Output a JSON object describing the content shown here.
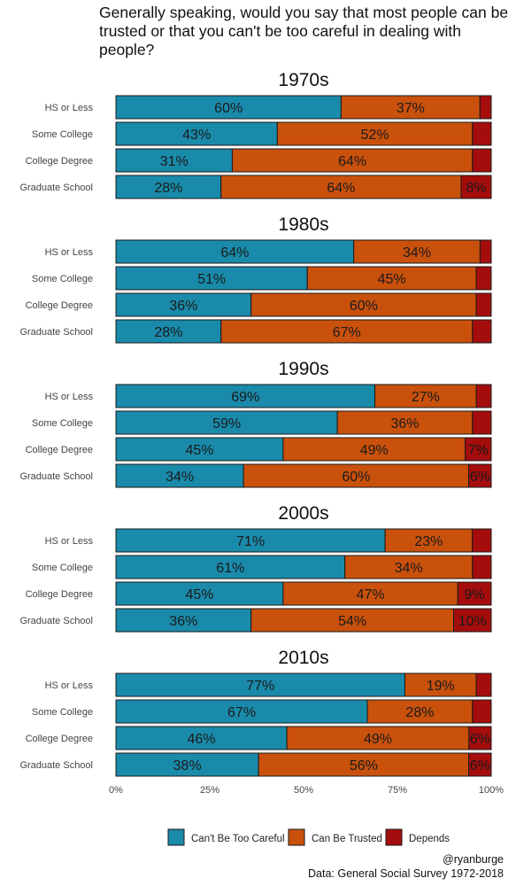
{
  "title": "Generally speaking, would you say that most people can be\ntrusted or that you can't be too careful in dealing with people?",
  "caption": {
    "author": "@ryanburge",
    "source": "Data: General Social Survey 1972-2018"
  },
  "colors": {
    "cant_be_too_careful": "#1a8aaa",
    "can_be_trusted": "#c9510c",
    "depends": "#a50d0d"
  },
  "chart_data": {
    "type": "bar",
    "orientation": "horizontal",
    "stacked": true,
    "facet_by": "decade",
    "categories": [
      "HS or Less",
      "Some College",
      "College Degree",
      "Graduate School"
    ],
    "xlim": [
      0,
      1
    ],
    "xticks": [
      "0%",
      "25%",
      "50%",
      "75%",
      "100%"
    ],
    "legend": {
      "position": "bottom",
      "entries": [
        "Can't Be Too Careful",
        "Can Be Trusted",
        "Depends"
      ]
    },
    "panels": [
      {
        "title": "1970s",
        "series": [
          {
            "name": "Can't Be Too Careful",
            "values": [
              0.6,
              0.43,
              0.31,
              0.28
            ]
          },
          {
            "name": "Can Be Trusted",
            "values": [
              0.37,
              0.52,
              0.64,
              0.64
            ]
          },
          {
            "name": "Depends",
            "values": [
              0.03,
              0.05,
              0.05,
              0.08
            ]
          }
        ]
      },
      {
        "title": "1980s",
        "series": [
          {
            "name": "Can't Be Too Careful",
            "values": [
              0.64,
              0.51,
              0.36,
              0.28
            ]
          },
          {
            "name": "Can Be Trusted",
            "values": [
              0.34,
              0.45,
              0.6,
              0.67
            ]
          },
          {
            "name": "Depends",
            "values": [
              0.03,
              0.04,
              0.04,
              0.05
            ]
          }
        ]
      },
      {
        "title": "1990s",
        "series": [
          {
            "name": "Can't Be Too Careful",
            "values": [
              0.69,
              0.59,
              0.45,
              0.34
            ]
          },
          {
            "name": "Can Be Trusted",
            "values": [
              0.27,
              0.36,
              0.49,
              0.6
            ]
          },
          {
            "name": "Depends",
            "values": [
              0.04,
              0.05,
              0.07,
              0.06
            ]
          }
        ]
      },
      {
        "title": "2000s",
        "series": [
          {
            "name": "Can't Be Too Careful",
            "values": [
              0.71,
              0.61,
              0.45,
              0.36
            ]
          },
          {
            "name": "Can Be Trusted",
            "values": [
              0.23,
              0.34,
              0.47,
              0.54
            ]
          },
          {
            "name": "Depends",
            "values": [
              0.05,
              0.05,
              0.09,
              0.1
            ]
          }
        ]
      },
      {
        "title": "2010s",
        "series": [
          {
            "name": "Can't Be Too Careful",
            "values": [
              0.77,
              0.67,
              0.46,
              0.38
            ]
          },
          {
            "name": "Can Be Trusted",
            "values": [
              0.19,
              0.28,
              0.49,
              0.56
            ]
          },
          {
            "name": "Depends",
            "values": [
              0.04,
              0.05,
              0.06,
              0.06
            ]
          }
        ]
      }
    ],
    "data_labels": [
      [
        [
          "60%",
          "37%",
          ""
        ],
        [
          "43%",
          "52%",
          ""
        ],
        [
          "31%",
          "64%",
          ""
        ],
        [
          "28%",
          "64%",
          "8%"
        ]
      ],
      [
        [
          "64%",
          "34%",
          ""
        ],
        [
          "51%",
          "45%",
          ""
        ],
        [
          "36%",
          "60%",
          ""
        ],
        [
          "28%",
          "67%",
          ""
        ]
      ],
      [
        [
          "69%",
          "27%",
          ""
        ],
        [
          "59%",
          "36%",
          ""
        ],
        [
          "45%",
          "49%",
          "7%"
        ],
        [
          "34%",
          "60%",
          "6%"
        ]
      ],
      [
        [
          "71%",
          "23%",
          ""
        ],
        [
          "61%",
          "34%",
          ""
        ],
        [
          "45%",
          "47%",
          "9%"
        ],
        [
          "36%",
          "54%",
          "10%"
        ]
      ],
      [
        [
          "77%",
          "19%",
          ""
        ],
        [
          "67%",
          "28%",
          ""
        ],
        [
          "46%",
          "49%",
          "6%"
        ],
        [
          "38%",
          "56%",
          "6%"
        ]
      ]
    ]
  }
}
